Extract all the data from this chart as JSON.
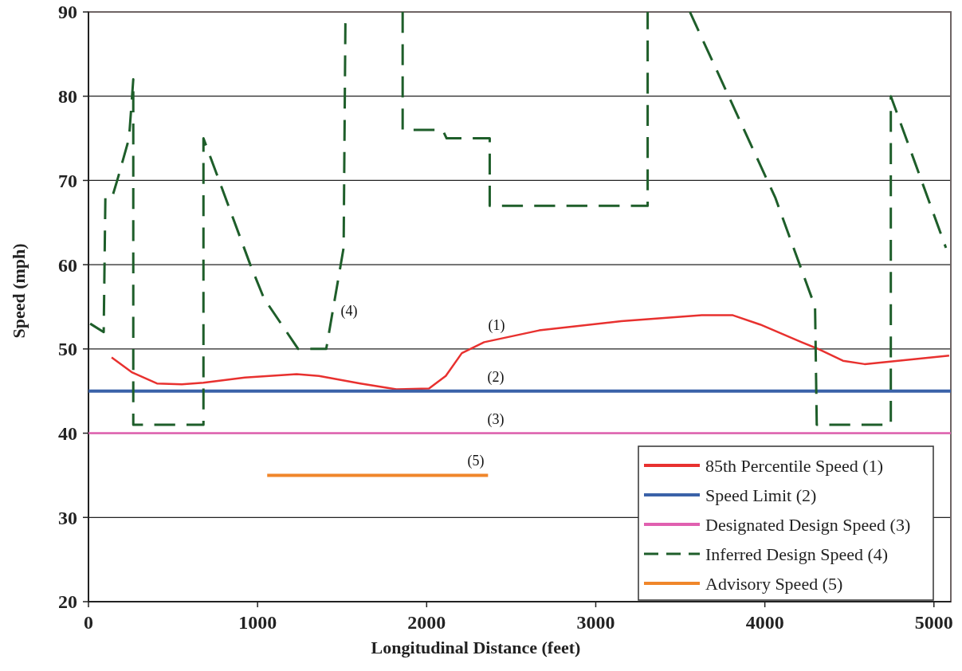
{
  "chart_data": {
    "type": "line",
    "xlabel": "Longitudinal Distance (feet)",
    "ylabel": "Speed (mph)",
    "xlim": [
      0,
      5100
    ],
    "ylim": [
      20,
      90
    ],
    "xticks": [
      0,
      1000,
      2000,
      3000,
      4000,
      5000
    ],
    "yticks": [
      20,
      30,
      40,
      50,
      60,
      70,
      80,
      90
    ],
    "grid": "y",
    "legend": "bottom right",
    "marker": "none",
    "series": [
      {
        "name": "85th Percentile Speed (1)",
        "color": "#e8312f",
        "line_style": "solid",
        "x": [
          137,
          259,
          405,
          552,
          680,
          925,
          1231,
          1363,
          1608,
          1821,
          2014,
          2113,
          2208,
          2340,
          2665,
          3151,
          3627,
          3811,
          3972,
          4217,
          4316,
          4462,
          4590,
          4788,
          5090
        ],
        "values": [
          49,
          47.2,
          45.9,
          45.8,
          46,
          46.6,
          47,
          46.8,
          45.9,
          45.2,
          45.3,
          46.8,
          49.5,
          50.8,
          52.2,
          53.3,
          54,
          54,
          52.9,
          50.8,
          50,
          48.6,
          48.2,
          48.6,
          49.2
        ]
      },
      {
        "name": "Speed Limit (2)",
        "color": "#3a62a8",
        "line_style": "solid",
        "x": [
          0,
          5100
        ],
        "values": [
          45,
          45
        ]
      },
      {
        "name": "Designated Design Speed (3)",
        "color": "#e060b0",
        "line_style": "solid",
        "x": [
          0,
          5100
        ],
        "values": [
          40,
          40
        ]
      },
      {
        "name": "Inferred Design Speed (4)",
        "color": "#1e5e2a",
        "line_style": "dashed",
        "x": [
          10,
          90,
          100,
          140,
          170,
          240,
          265,
          265,
          680,
          680,
          957,
          1038,
          1240,
          1406,
          1509,
          1520,
          1700,
          1858,
          1858,
          2094,
          2118,
          2373,
          2373,
          3307,
          3307,
          3430,
          3557,
          3575,
          4024,
          4061,
          4297,
          4307,
          4745,
          4745,
          5071
        ],
        "values": [
          53,
          52,
          68,
          68,
          70,
          75,
          82,
          41,
          41,
          75,
          60,
          56,
          50,
          50,
          62,
          90,
          null,
          90,
          76,
          76,
          75,
          75,
          67,
          67,
          90,
          null,
          90,
          89.2,
          69.6,
          68,
          55,
          41,
          41,
          80,
          62
        ]
      },
      {
        "name": "Advisory Speed (5)",
        "color": "#f0862a",
        "line_style": "solid",
        "x": [
          1057,
          2363
        ],
        "values": [
          35,
          35
        ]
      }
    ],
    "annotations": [
      "(1)",
      "(2)",
      "(3)",
      "(4)",
      "(5)"
    ]
  }
}
